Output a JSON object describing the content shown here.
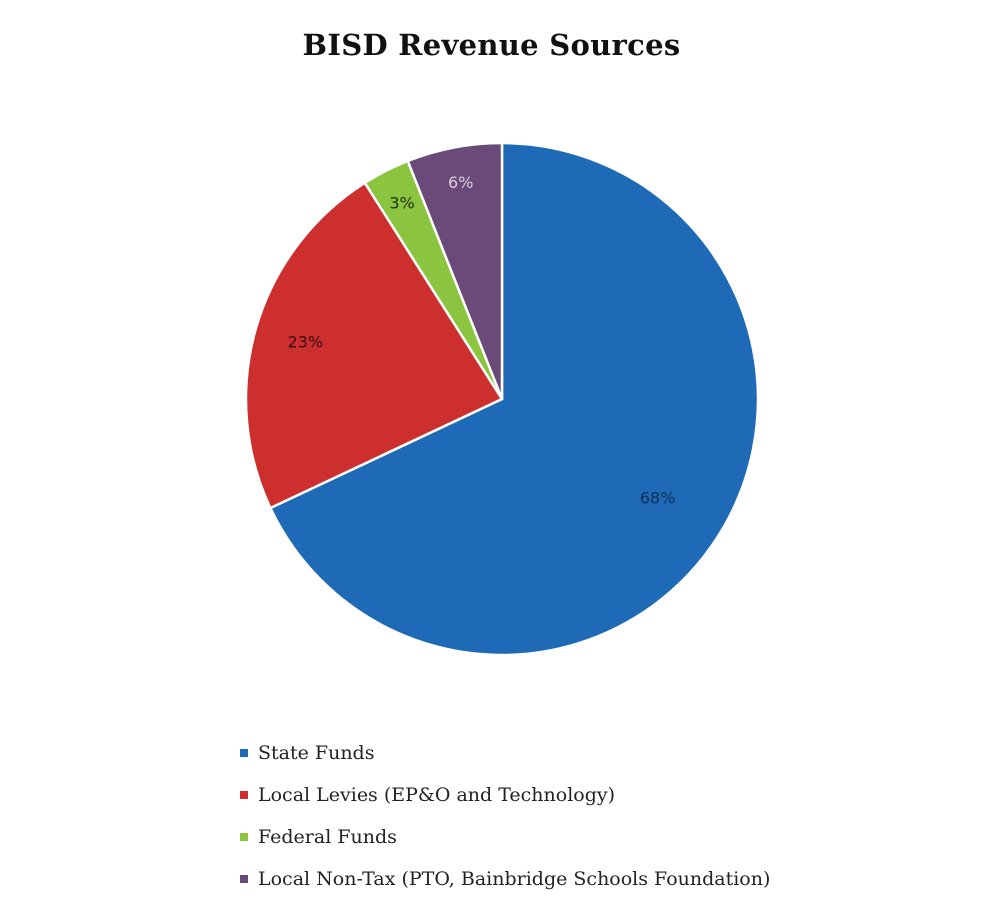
{
  "chart_data": {
    "type": "pie",
    "title": "BISD Revenue Sources",
    "categories": [
      "State Funds",
      "Local Levies (EP&O and Technology)",
      "Federal Funds",
      "Local Non-Tax (PTO, Bainbridge Schools Foundation)"
    ],
    "values": [
      68,
      23,
      3,
      6
    ],
    "data_labels": [
      "68%",
      "23%",
      "3%",
      "6%"
    ],
    "colors": [
      "#1f6ab6",
      "#cc2f2e",
      "#8bc43e",
      "#6a4a78"
    ],
    "legend_placement": "bottom-left"
  }
}
